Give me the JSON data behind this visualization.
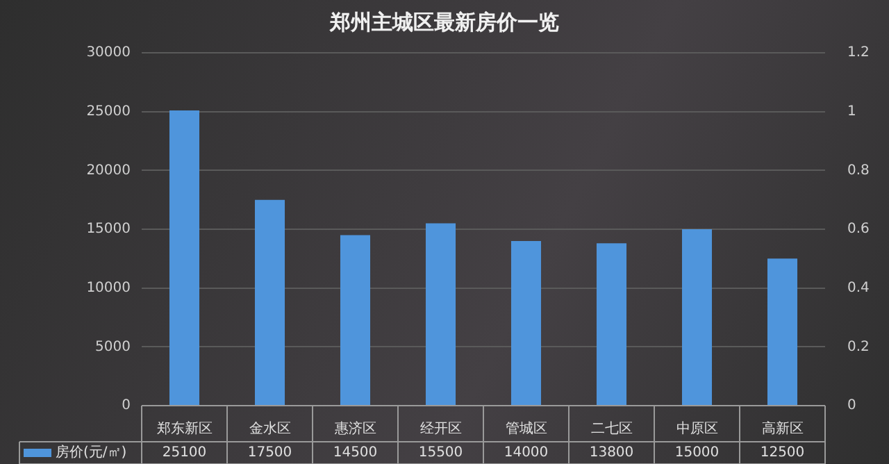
{
  "chart_data": {
    "type": "bar",
    "title": "郑州主城区最新房价一览",
    "categories": [
      "郑东新区",
      "金水区",
      "惠济区",
      "经开区",
      "管城区",
      "二七区",
      "中原区",
      "高新区"
    ],
    "series": [
      {
        "name": "房价(元/㎡)",
        "color": "#4f95dc",
        "values": [
          25100,
          17500,
          14500,
          15500,
          14000,
          13800,
          15000,
          12500
        ]
      }
    ],
    "ylim": [
      0,
      30000
    ],
    "yticks": [
      0,
      5000,
      10000,
      15000,
      20000,
      25000,
      30000
    ],
    "y2lim": [
      0,
      1.2
    ],
    "y2ticks": [
      0,
      0.2,
      0.4,
      0.6,
      0.8,
      1,
      1.2
    ],
    "grid": "y",
    "legend": "bottom",
    "data_labels": true
  }
}
